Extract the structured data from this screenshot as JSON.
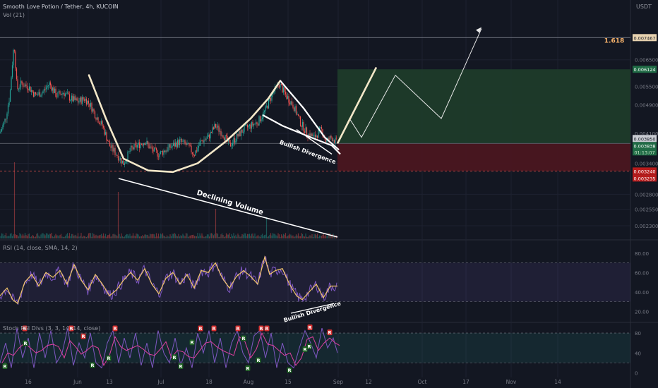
{
  "header": {
    "symbol_line": "Smooth Love Potion / Tether, 4h, KUCOIN",
    "volume_line": "Vol (21)",
    "rsi_line": "RSI (14, close, SMA, 14, 2)",
    "stoch_line": "Stoch RSI Divs (3, 3, 14, 14, close)",
    "currency": "USDT"
  },
  "colors": {
    "background": "#131722",
    "grid": "#1e2230",
    "axis_text": "#787b86",
    "up": "#26a69a",
    "down": "#ef5350",
    "profit_zone": "#1e3b2a",
    "loss_zone": "#4a1620",
    "rsi_line": "#7e57c2",
    "rsi_ma": "#f5c86a",
    "stoch_k": "#7e57c2",
    "stoch_d": "#e040a0",
    "annotation": "#ffffff"
  },
  "chart_data": [
    {
      "type": "candlestick",
      "title": "Smooth Love Potion / Tether, 4h, KUCOIN",
      "xaxis_ticks": [
        "16",
        "Jun",
        "13",
        "Jul",
        "18",
        "Aug",
        "15",
        "Sep",
        "12",
        "Oct",
        "17",
        "Nov",
        "14"
      ],
      "price_ticks": [
        0.0065,
        0.0055,
        0.0049,
        0.0041,
        0.0034,
        0.0028,
        0.00255,
        0.0023
      ],
      "price_tick_labels": [
        "0.006500",
        "0.005500",
        "0.004900",
        "0.004100",
        "0.003400",
        "0.002800",
        "0.002550",
        "0.002300"
      ],
      "ylim": [
        0.0022,
        0.0084
      ],
      "price_labels": {
        "target": "0.007467",
        "take_profit": "0.006124",
        "current": "0.003850",
        "current_2": "0.003838",
        "countdown": "01:13:07",
        "stop": "0.003240",
        "stop_2": "0.003235"
      },
      "fib_label": "1.618",
      "fib_level": 0.007467,
      "long_position": {
        "entry": 0.00385,
        "target": 0.006124,
        "stop": 0.00324
      },
      "price_path": [
        [
          0,
          0.0041
        ],
        [
          8,
          0.0045
        ],
        [
          14,
          0.0052
        ],
        [
          20,
          0.0072
        ],
        [
          24,
          0.0054
        ],
        [
          30,
          0.0056
        ],
        [
          40,
          0.0055
        ],
        [
          50,
          0.0052
        ],
        [
          60,
          0.0053
        ],
        [
          70,
          0.0056
        ],
        [
          80,
          0.0052
        ],
        [
          90,
          0.0053
        ],
        [
          100,
          0.0051
        ],
        [
          110,
          0.005
        ],
        [
          120,
          0.0051
        ],
        [
          128,
          0.0049
        ],
        [
          135,
          0.0046
        ],
        [
          145,
          0.0043
        ],
        [
          155,
          0.0038
        ],
        [
          165,
          0.0036
        ],
        [
          175,
          0.0034
        ],
        [
          185,
          0.0037
        ],
        [
          195,
          0.0038
        ],
        [
          205,
          0.0039
        ],
        [
          215,
          0.0037
        ],
        [
          225,
          0.0036
        ],
        [
          235,
          0.0037
        ],
        [
          245,
          0.0038
        ],
        [
          255,
          0.0039
        ],
        [
          265,
          0.0038
        ],
        [
          275,
          0.0036
        ],
        [
          285,
          0.0039
        ],
        [
          295,
          0.004
        ],
        [
          305,
          0.0043
        ],
        [
          315,
          0.0041
        ],
        [
          325,
          0.0038
        ],
        [
          335,
          0.004
        ],
        [
          345,
          0.0042
        ],
        [
          355,
          0.0043
        ],
        [
          365,
          0.0044
        ],
        [
          375,
          0.0047
        ],
        [
          385,
          0.0052
        ],
        [
          395,
          0.0056
        ],
        [
          405,
          0.0052
        ],
        [
          415,
          0.0049
        ],
        [
          425,
          0.0044
        ],
        [
          435,
          0.0041
        ],
        [
          445,
          0.004
        ],
        [
          455,
          0.0042
        ],
        [
          462,
          0.0039
        ],
        [
          470,
          0.004
        ],
        [
          478,
          0.00385
        ]
      ],
      "volume_spikes": [
        [
          20,
          0.9
        ],
        [
          168,
          0.55
        ],
        [
          305,
          0.35
        ],
        [
          378,
          0.25
        ]
      ],
      "projection_path": [
        [
          478,
          0.00385
        ],
        [
          495,
          0.0045
        ],
        [
          512,
          0.004
        ],
        [
          560,
          0.0059
        ],
        [
          625,
          0.0045
        ],
        [
          682,
          0.0079
        ]
      ],
      "impulse_arrow": [
        [
          478,
          0.00385
        ],
        [
          533,
          0.0062
        ]
      ],
      "cup_curve": [
        [
          126,
          0.0059
        ],
        [
          150,
          0.0045
        ],
        [
          175,
          0.0035
        ],
        [
          210,
          0.00325
        ],
        [
          245,
          0.00322
        ],
        [
          280,
          0.0034
        ],
        [
          320,
          0.0039
        ],
        [
          355,
          0.0045
        ],
        [
          380,
          0.0051
        ],
        [
          397,
          0.0057
        ]
      ],
      "handle_upper": [
        [
          397,
          0.0057
        ],
        [
          430,
          0.0048
        ],
        [
          460,
          0.004
        ],
        [
          480,
          0.0037
        ]
      ],
      "handle_lower": [
        [
          372,
          0.0046
        ],
        [
          400,
          0.0043
        ],
        [
          440,
          0.004
        ],
        [
          470,
          0.0038
        ],
        [
          482,
          0.0036
        ]
      ],
      "divergence_line": [
        [
          420,
          0.0042
        ],
        [
          470,
          0.0036
        ]
      ],
      "volume_trendline": [
        [
          168,
          0.00315
        ],
        [
          478,
          0.00218
        ]
      ],
      "annotations": [
        {
          "text": "Declining Volume",
          "x": 325,
          "y": 0.0029,
          "angle": 17
        },
        {
          "text": "Bullish Divergence",
          "x": 435,
          "y": 0.00355,
          "angle": 20
        }
      ]
    },
    {
      "type": "line",
      "title": "RSI (14, close, SMA, 14, 2)",
      "yticks": [
        20,
        40,
        60,
        80
      ],
      "ytick_labels": [
        "20.00",
        "40.00",
        "60.00",
        "80.00"
      ],
      "ylim": [
        10,
        90
      ],
      "bands": [
        30,
        70
      ],
      "series": [
        {
          "values_path": [
            [
              0,
              36
            ],
            [
              10,
              44
            ],
            [
              18,
              32
            ],
            [
              25,
              28
            ],
            [
              35,
              50
            ],
            [
              45,
              58
            ],
            [
              55,
              46
            ],
            [
              65,
              60
            ],
            [
              75,
              55
            ],
            [
              85,
              62
            ],
            [
              95,
              48
            ],
            [
              105,
              68
            ],
            [
              115,
              52
            ],
            [
              125,
              42
            ],
            [
              135,
              58
            ],
            [
              145,
              48
            ],
            [
              155,
              36
            ],
            [
              165,
              42
            ],
            [
              175,
              52
            ],
            [
              185,
              60
            ],
            [
              195,
              52
            ],
            [
              205,
              64
            ],
            [
              215,
              48
            ],
            [
              225,
              38
            ],
            [
              235,
              54
            ],
            [
              245,
              60
            ],
            [
              255,
              48
            ],
            [
              265,
              58
            ],
            [
              275,
              44
            ],
            [
              285,
              62
            ],
            [
              295,
              60
            ],
            [
              305,
              70
            ],
            [
              315,
              54
            ],
            [
              325,
              44
            ],
            [
              335,
              56
            ],
            [
              345,
              62
            ],
            [
              355,
              56
            ],
            [
              365,
              48
            ],
            [
              375,
              76
            ],
            [
              382,
              58
            ],
            [
              390,
              62
            ],
            [
              400,
              64
            ],
            [
              410,
              48
            ],
            [
              420,
              36
            ],
            [
              428,
              32
            ],
            [
              438,
              40
            ],
            [
              448,
              48
            ],
            [
              458,
              34
            ],
            [
              468,
              46
            ],
            [
              478,
              46
            ]
          ]
        }
      ],
      "annotation": {
        "text": "Bullish Divergence",
        "x": 443,
        "y": 22,
        "angle": -17
      },
      "divergence_line": [
        [
          412,
          18
        ],
        [
          473,
          28
        ]
      ]
    },
    {
      "type": "line",
      "title": "Stoch RSI Divs (3, 3, 14, 14, close)",
      "yticks": [
        0,
        40,
        80
      ],
      "ytick_labels": [
        "0",
        "40",
        "80"
      ],
      "ylim": [
        -5,
        100
      ],
      "bands": [
        20,
        80
      ],
      "series": [
        {
          "name": "K",
          "values_path": [
            [
              0,
              20
            ],
            [
              8,
              60
            ],
            [
              16,
              10
            ],
            [
              24,
              90
            ],
            [
              32,
              30
            ],
            [
              40,
              70
            ],
            [
              48,
              10
            ],
            [
              56,
              80
            ],
            [
              64,
              30
            ],
            [
              72,
              85
            ],
            [
              80,
              20
            ],
            [
              88,
              40
            ],
            [
              96,
              90
            ],
            [
              104,
              15
            ],
            [
              112,
              60
            ],
            [
              120,
              30
            ],
            [
              128,
              80
            ],
            [
              136,
              20
            ],
            [
              144,
              10
            ],
            [
              152,
              60
            ],
            [
              160,
              85
            ],
            [
              168,
              20
            ],
            [
              176,
              70
            ],
            [
              184,
              30
            ],
            [
              192,
              80
            ],
            [
              200,
              15
            ],
            [
              208,
              60
            ],
            [
              216,
              10
            ],
            [
              224,
              85
            ],
            [
              232,
              40
            ],
            [
              240,
              20
            ],
            [
              248,
              70
            ],
            [
              256,
              15
            ],
            [
              264,
              50
            ],
            [
              272,
              10
            ],
            [
              280,
              80
            ],
            [
              288,
              40
            ],
            [
              296,
              85
            ],
            [
              304,
              20
            ],
            [
              312,
              70
            ],
            [
              320,
              10
            ],
            [
              328,
              60
            ],
            [
              336,
              85
            ],
            [
              344,
              40
            ],
            [
              352,
              20
            ],
            [
              360,
              75
            ],
            [
              368,
              85
            ],
            [
              376,
              30
            ],
            [
              384,
              80
            ],
            [
              392,
              10
            ],
            [
              400,
              60
            ],
            [
              408,
              20
            ],
            [
              416,
              10
            ],
            [
              424,
              50
            ],
            [
              432,
              85
            ],
            [
              440,
              60
            ],
            [
              448,
              30
            ],
            [
              456,
              90
            ],
            [
              464,
              50
            ],
            [
              472,
              70
            ],
            [
              478,
              40
            ]
          ]
        }
      ],
      "signals": [
        {
          "label": "R",
          "x": 35,
          "v": 88,
          "kind": "bear"
        },
        {
          "label": "R",
          "x": 101,
          "v": 88,
          "kind": "bear"
        },
        {
          "label": "R",
          "x": 118,
          "v": 72,
          "kind": "bear"
        },
        {
          "label": "R",
          "x": 163,
          "v": 88,
          "kind": "bear"
        },
        {
          "label": "R",
          "x": 284,
          "v": 88,
          "kind": "bear"
        },
        {
          "label": "R",
          "x": 303,
          "v": 88,
          "kind": "bear"
        },
        {
          "label": "R",
          "x": 337,
          "v": 88,
          "kind": "bear"
        },
        {
          "label": "R",
          "x": 370,
          "v": 88,
          "kind": "bear"
        },
        {
          "label": "R",
          "x": 378,
          "v": 88,
          "kind": "bear"
        },
        {
          "label": "R",
          "x": 439,
          "v": 90,
          "kind": "bear"
        },
        {
          "label": "R",
          "x": 467,
          "v": 80,
          "kind": "bear"
        },
        {
          "label": "R",
          "x": 7,
          "v": 12,
          "kind": "bull"
        },
        {
          "label": "R",
          "x": 36,
          "v": 58,
          "kind": "bull"
        },
        {
          "label": "R",
          "x": 131,
          "v": 14,
          "kind": "bull"
        },
        {
          "label": "R",
          "x": 154,
          "v": 28,
          "kind": "bull"
        },
        {
          "label": "R",
          "x": 247,
          "v": 30,
          "kind": "bull"
        },
        {
          "label": "R",
          "x": 256,
          "v": 12,
          "kind": "bull"
        },
        {
          "label": "R",
          "x": 272,
          "v": 60,
          "kind": "bull"
        },
        {
          "label": "R",
          "x": 345,
          "v": 68,
          "kind": "bull"
        },
        {
          "label": "R",
          "x": 351,
          "v": 8,
          "kind": "bull"
        },
        {
          "label": "R",
          "x": 366,
          "v": 24,
          "kind": "bull"
        },
        {
          "label": "R",
          "x": 410,
          "v": 4,
          "kind": "bull"
        },
        {
          "label": "R",
          "x": 432,
          "v": 46,
          "kind": "bull"
        },
        {
          "label": "R",
          "x": 438,
          "v": 52,
          "kind": "bull"
        }
      ]
    }
  ]
}
